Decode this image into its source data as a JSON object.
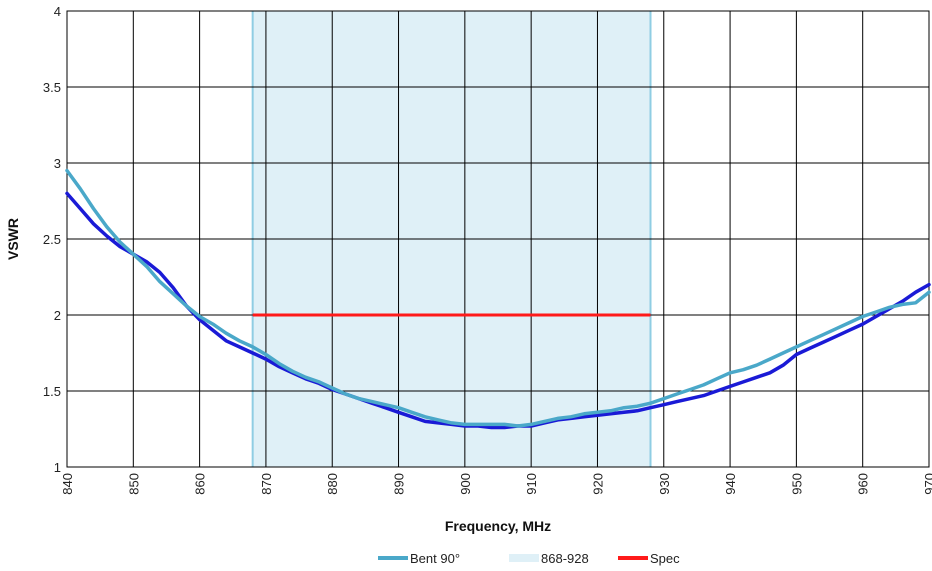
{
  "chart_data": {
    "type": "line",
    "title": "",
    "xlabel": "Frequency, MHz",
    "ylabel": "VSWR",
    "xlim": [
      840,
      970
    ],
    "ylim": [
      1,
      4
    ],
    "x_ticks": [
      840,
      850,
      860,
      870,
      880,
      890,
      900,
      910,
      920,
      930,
      940,
      950,
      960,
      970
    ],
    "y_ticks": [
      1,
      1.5,
      2,
      2.5,
      3,
      3.5,
      4
    ],
    "y_tick_labels": [
      "1",
      "1.5",
      "2",
      "2.5",
      "3",
      "3.5",
      "4"
    ],
    "grid": true,
    "legend_position": "bottom",
    "band": {
      "name": "868-928",
      "x_start": 868,
      "x_end": 928,
      "color": "#dff0f7",
      "edge_color": "#8fcde3"
    },
    "spec": {
      "name": "Spec",
      "x_start": 868,
      "x_end": 928,
      "y": 2,
      "color": "#ff1a1a"
    },
    "series": [
      {
        "name": "",
        "color": "#1a1ad6",
        "x": [
          840,
          842,
          844,
          846,
          848,
          850,
          852,
          854,
          856,
          858,
          860,
          862,
          864,
          866,
          868,
          870,
          872,
          874,
          876,
          878,
          880,
          882,
          884,
          886,
          888,
          890,
          892,
          894,
          896,
          898,
          900,
          902,
          904,
          906,
          908,
          910,
          912,
          914,
          916,
          918,
          920,
          922,
          924,
          926,
          928,
          930,
          932,
          934,
          936,
          938,
          940,
          942,
          944,
          946,
          948,
          950,
          952,
          954,
          956,
          958,
          960,
          962,
          964,
          966,
          968,
          970
        ],
        "y": [
          2.8,
          2.7,
          2.6,
          2.52,
          2.45,
          2.4,
          2.35,
          2.28,
          2.18,
          2.06,
          1.97,
          1.9,
          1.83,
          1.79,
          1.75,
          1.71,
          1.66,
          1.62,
          1.58,
          1.55,
          1.51,
          1.48,
          1.45,
          1.42,
          1.39,
          1.36,
          1.33,
          1.3,
          1.29,
          1.28,
          1.27,
          1.27,
          1.26,
          1.26,
          1.27,
          1.27,
          1.29,
          1.31,
          1.32,
          1.33,
          1.34,
          1.35,
          1.36,
          1.37,
          1.39,
          1.41,
          1.43,
          1.45,
          1.47,
          1.5,
          1.53,
          1.56,
          1.59,
          1.62,
          1.67,
          1.74,
          1.78,
          1.82,
          1.86,
          1.9,
          1.94,
          1.99,
          2.04,
          2.09,
          2.15,
          2.2
        ]
      },
      {
        "name": "Bent 90°",
        "color": "#4aa8c9",
        "x": [
          840,
          842,
          844,
          846,
          848,
          850,
          852,
          854,
          856,
          858,
          860,
          862,
          864,
          866,
          868,
          870,
          872,
          874,
          876,
          878,
          880,
          882,
          884,
          886,
          888,
          890,
          892,
          894,
          896,
          898,
          900,
          902,
          904,
          906,
          908,
          910,
          912,
          914,
          916,
          918,
          920,
          922,
          924,
          926,
          928,
          930,
          932,
          934,
          936,
          938,
          940,
          942,
          944,
          946,
          948,
          950,
          952,
          954,
          956,
          958,
          960,
          962,
          964,
          966,
          968,
          970
        ],
        "y": [
          2.95,
          2.83,
          2.7,
          2.58,
          2.48,
          2.4,
          2.32,
          2.22,
          2.14,
          2.06,
          1.99,
          1.94,
          1.88,
          1.83,
          1.79,
          1.74,
          1.68,
          1.63,
          1.59,
          1.56,
          1.52,
          1.48,
          1.45,
          1.43,
          1.41,
          1.39,
          1.36,
          1.33,
          1.31,
          1.29,
          1.28,
          1.28,
          1.28,
          1.28,
          1.27,
          1.28,
          1.3,
          1.32,
          1.33,
          1.35,
          1.36,
          1.37,
          1.39,
          1.4,
          1.42,
          1.45,
          1.48,
          1.51,
          1.54,
          1.58,
          1.62,
          1.64,
          1.67,
          1.71,
          1.75,
          1.79,
          1.83,
          1.87,
          1.91,
          1.95,
          1.99,
          2.02,
          2.05,
          2.07,
          2.08,
          2.15
        ]
      }
    ],
    "legend": [
      {
        "label": "Bent 90°",
        "kind": "line",
        "color": "#4aa8c9"
      },
      {
        "label": "868-928",
        "kind": "band",
        "color": "#dff0f7"
      },
      {
        "label": "Spec",
        "kind": "line",
        "color": "#ff1a1a"
      }
    ]
  }
}
